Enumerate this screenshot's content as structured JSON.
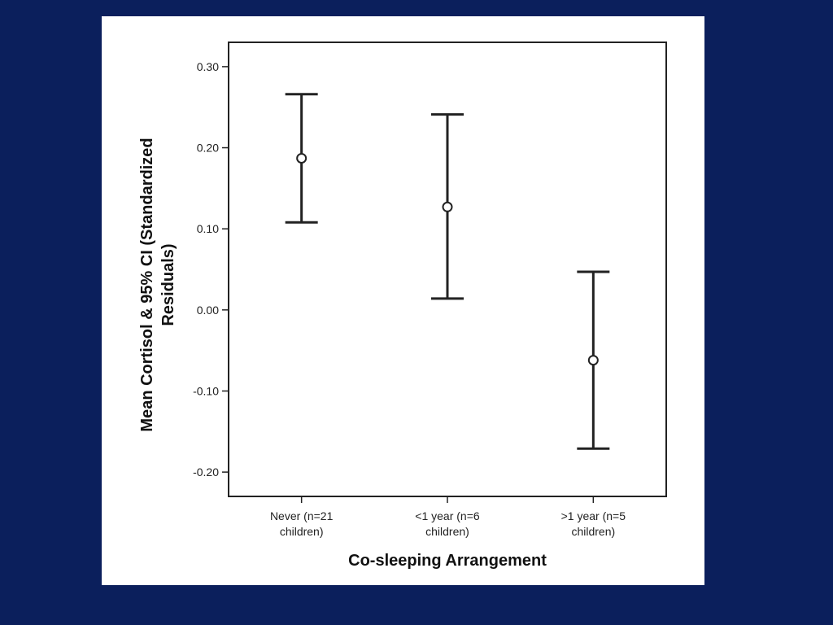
{
  "chart_data": {
    "type": "errorbar",
    "categories": [
      [
        "Never (n=21",
        "children)"
      ],
      [
        "<1 year (n=6",
        "children)"
      ],
      [
        ">1 year (n=5",
        "children)"
      ]
    ],
    "series": [
      {
        "means": [
          0.187,
          0.127,
          -0.062
        ],
        "ci_lower": [
          0.108,
          0.014,
          -0.171
        ],
        "ci_upper": [
          0.266,
          0.241,
          0.047
        ]
      }
    ],
    "xlabel": "Co-sleeping Arrangement",
    "ylabel": [
      "Mean Cortisol & 95% CI (Standardized",
      "Residuals)"
    ],
    "ylim": [
      -0.23,
      0.33
    ],
    "yticks": [
      "0.30",
      "0.20",
      "0.10",
      "0.00",
      "-0.10",
      "-0.20"
    ],
    "ytick_values": [
      0.3,
      0.2,
      0.1,
      0.0,
      -0.1,
      -0.2
    ],
    "grid": false,
    "colors": {
      "background": "#0b1f5c",
      "panel": "#ffffff",
      "ink": "#222222"
    }
  }
}
